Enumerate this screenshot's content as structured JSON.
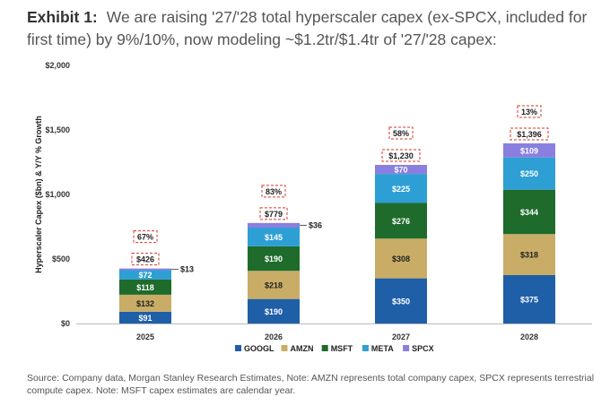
{
  "header": {
    "label": "Exhibit 1:",
    "text": "We are raising '27/'28 total hyperscaler capex (ex-SPCX, included for first time) by 9%/10%, now modeling ~$1.2tr/$1.4tr of '27/'28 capex:"
  },
  "footer": {
    "text": "Source: Company data, Morgan Stanley Research Estimates, Note: AMZN represents total company capex, SPCX represents terrestrial compute capex. Note: MSFT capex estimates are calendar year."
  },
  "chart_data": {
    "type": "bar",
    "stacked": true,
    "categories": [
      "2025",
      "2026",
      "2027",
      "2028"
    ],
    "ylabel": "Hyperscaler Capex ($bn) & Y/Y % Growth",
    "ylim": [
      0,
      2000
    ],
    "yticks": [
      0,
      500,
      1000,
      1500,
      2000
    ],
    "ytick_labels": [
      "$0",
      "$500",
      "$1,000",
      "$1,500",
      "$2,000"
    ],
    "series": [
      {
        "name": "GOOGL",
        "color": "#1f5fa8",
        "values": [
          91,
          190,
          350,
          375
        ],
        "labels": [
          "$91",
          "$190",
          "$350",
          "$375"
        ]
      },
      {
        "name": "AMZN",
        "color": "#c9ad66",
        "values": [
          132,
          218,
          308,
          318
        ],
        "labels": [
          "$132",
          "$218",
          "$308",
          "$318"
        ]
      },
      {
        "name": "MSFT",
        "color": "#1e6b2c",
        "values": [
          118,
          190,
          276,
          344
        ],
        "labels": [
          "$118",
          "$190",
          "$276",
          "$344"
        ]
      },
      {
        "name": "META",
        "color": "#2e9fd4",
        "values": [
          72,
          145,
          225,
          250
        ],
        "labels": [
          "$72",
          "$145",
          "$225",
          "$250"
        ]
      },
      {
        "name": "SPCX",
        "color": "#8a7fe0",
        "values": [
          13,
          36,
          70,
          109
        ],
        "labels": [
          "$13",
          "$36",
          "$70",
          "$109"
        ]
      }
    ],
    "totals": [
      "$426",
      "$779",
      "$1,230",
      "$1,396"
    ],
    "growth": [
      "67%",
      "83%",
      "58%",
      "13%"
    ],
    "legend_position": "bottom"
  }
}
